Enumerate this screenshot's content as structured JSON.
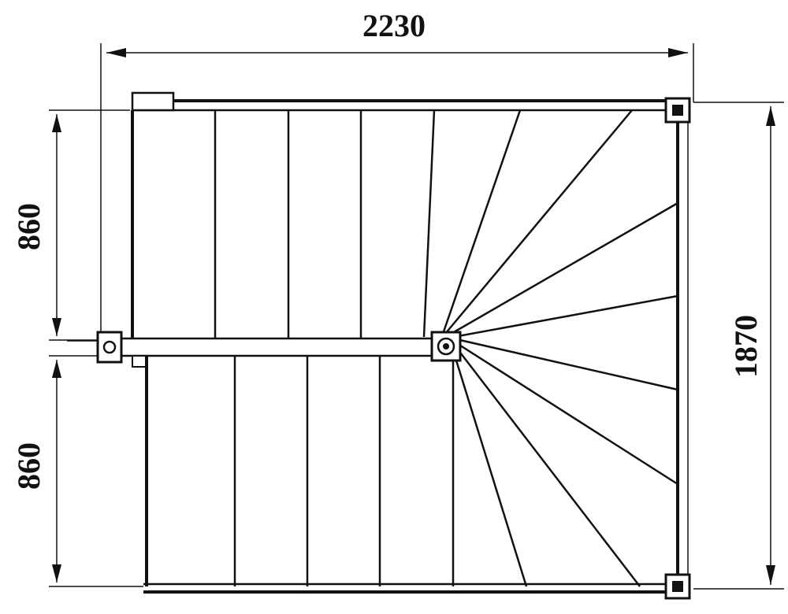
{
  "dimensions": {
    "total_width": "2230",
    "total_depth": "1870",
    "upper_flight_width": "860",
    "lower_flight_width": "860"
  }
}
